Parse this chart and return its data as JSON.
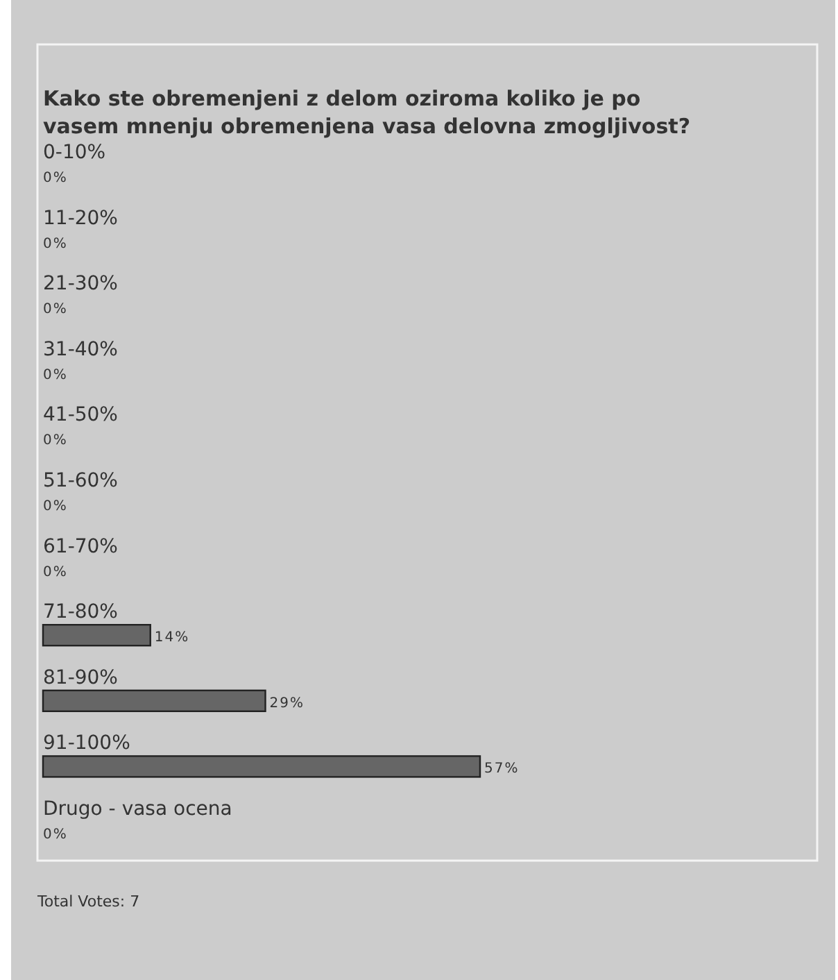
{
  "chart_data": {
    "type": "bar",
    "orientation": "horizontal",
    "title": "Kako ste obremenjeni z delom oziroma koliko je po vasem mnenju obremenjena vasa delovna zmogljivost?",
    "categories": [
      "0-10%",
      "11-20%",
      "21-30%",
      "31-40%",
      "41-50%",
      "51-60%",
      "61-70%",
      "71-80%",
      "81-90%",
      "91-100%",
      "Drugo - vasa ocena"
    ],
    "values": [
      0,
      0,
      0,
      0,
      0,
      0,
      0,
      14,
      29,
      57,
      0
    ],
    "value_labels": [
      "0%",
      "0%",
      "0%",
      "0%",
      "0%",
      "0%",
      "0%",
      "14%",
      "29%",
      "57%",
      "0%"
    ],
    "color": "#666666",
    "annotations": [
      "Total Votes: 7"
    ]
  }
}
